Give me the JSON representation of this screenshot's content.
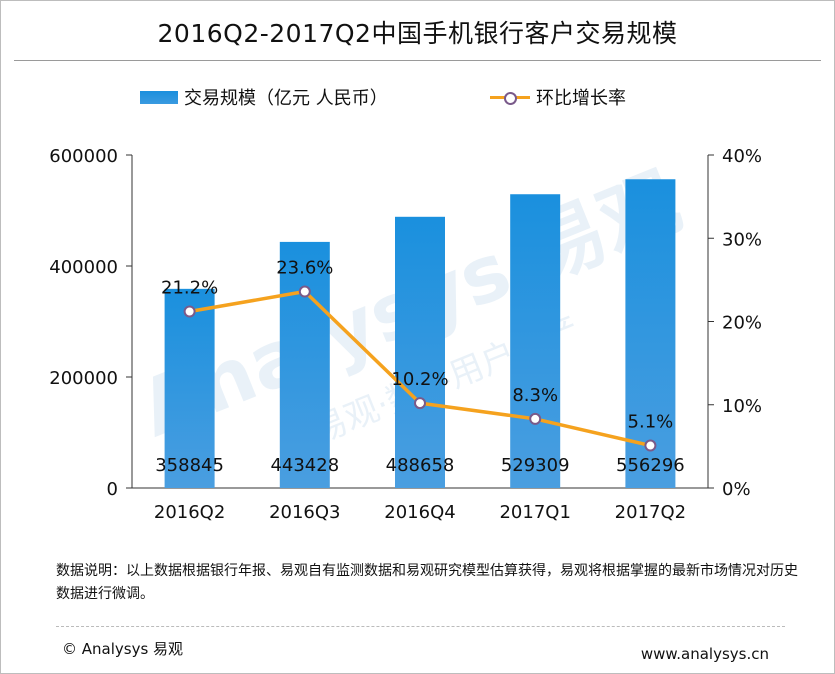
{
  "title": "2016Q2-2017Q2中国手机银行客户交易规模",
  "legend": {
    "bar_label": "交易规模（亿元 人民币）",
    "line_label": "环比增长率"
  },
  "colors": {
    "bar": "#2b94de",
    "line": "#f5a21e",
    "marker": "#7a5a8a"
  },
  "chart_data": {
    "type": "bar",
    "categories": [
      "2016Q2",
      "2016Q3",
      "2016Q4",
      "2017Q1",
      "2017Q2"
    ],
    "series": [
      {
        "name": "交易规模（亿元 人民币）",
        "type": "bar",
        "axis": "left",
        "values": [
          358845,
          443428,
          488658,
          529309,
          556296
        ]
      },
      {
        "name": "环比增长率",
        "type": "line",
        "axis": "right",
        "values": [
          21.2,
          23.6,
          10.2,
          8.3,
          5.1
        ],
        "labels": [
          "21.2%",
          "23.6%",
          "10.2%",
          "8.3%",
          "5.1%"
        ]
      }
    ],
    "y_left": {
      "ylim": [
        0,
        600000
      ],
      "ticks": [
        "0",
        "200000",
        "400000",
        "600000"
      ]
    },
    "y_right": {
      "ylim": [
        0,
        40
      ],
      "ticks": [
        "0%",
        "10%",
        "20%",
        "30%",
        "40%"
      ]
    },
    "bar_labels": [
      "358845",
      "443428",
      "488658",
      "529309",
      "556296"
    ],
    "legend_position": "top",
    "grid": false
  },
  "note": "数据说明：以上数据根据银行年报、易观自有监测数据和易观研究模型估算获得，易观将根据掌握的最新市场情况对历史数据进行微调。",
  "footer": {
    "copyright": "© Analysys 易观",
    "url": "www.analysys.cn"
  },
  "watermark": {
    "brand": "Analysys 易观",
    "slogan": "易观·数字用户资产"
  }
}
